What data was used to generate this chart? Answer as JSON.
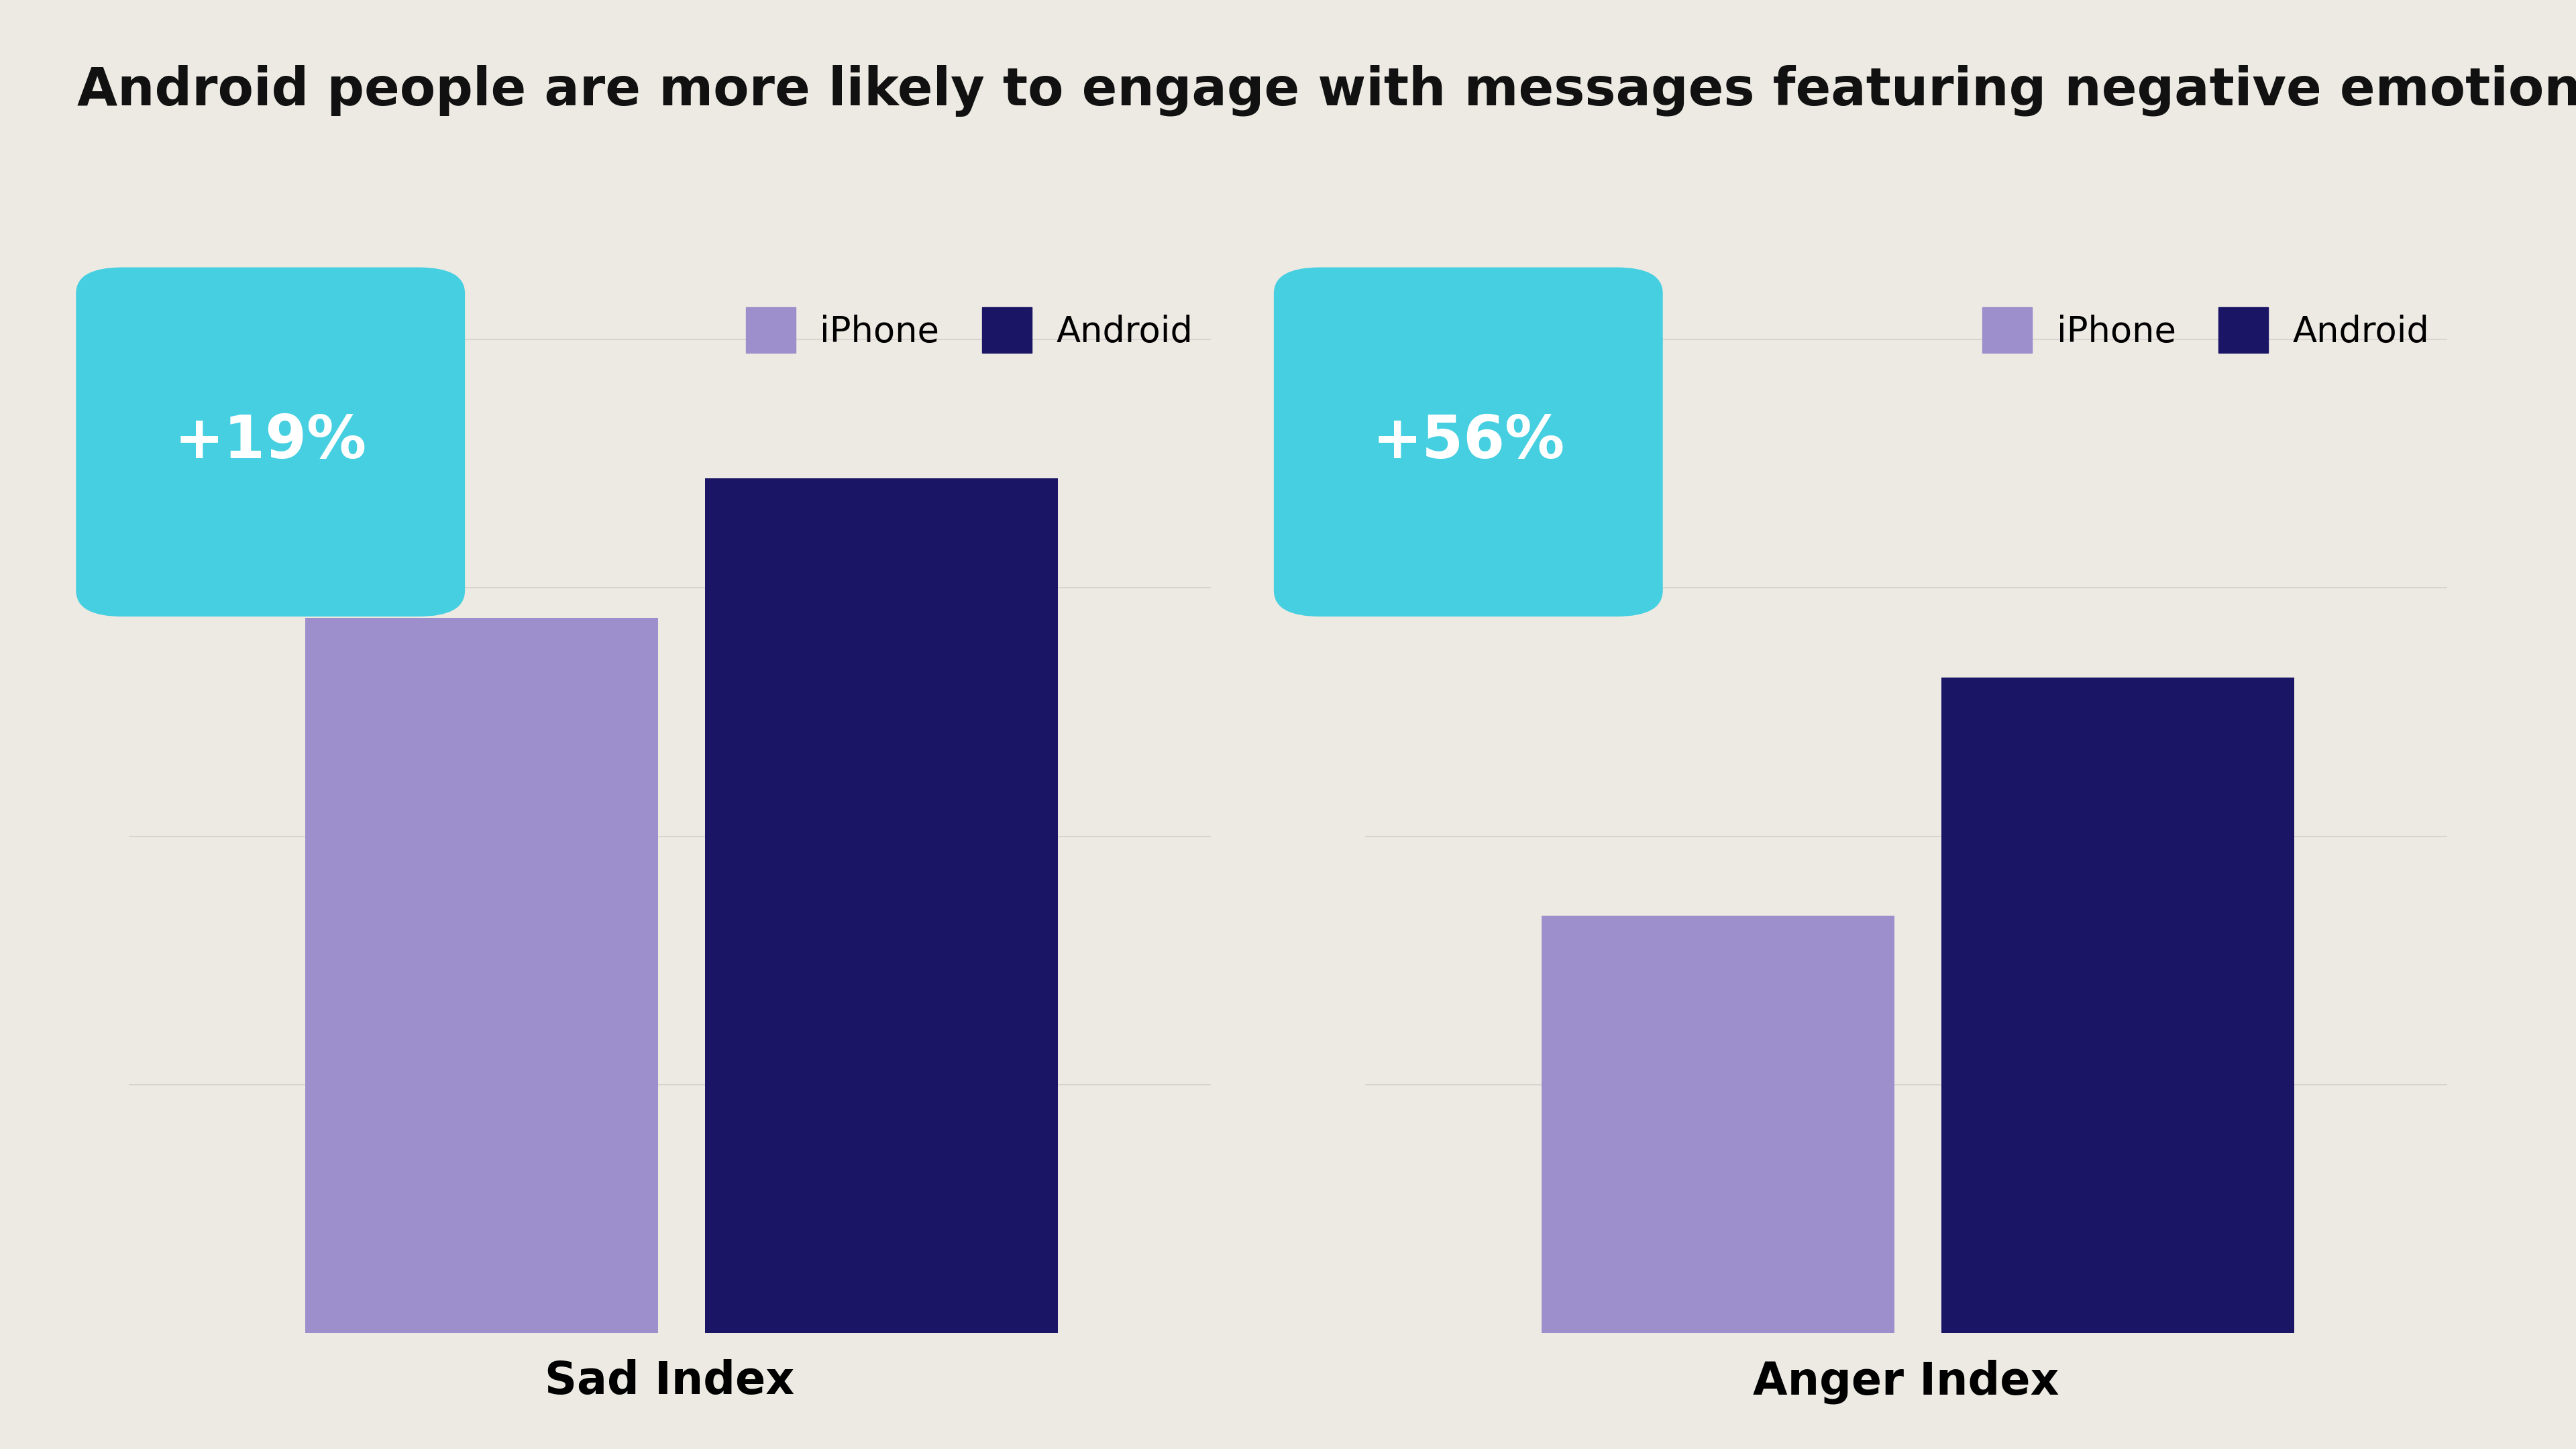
{
  "title": "Android people are more likely to engage with messages featuring negative emotions.",
  "background_color": "#edeae3",
  "chart1": {
    "label": "Sad Index",
    "iphone_value": 0.72,
    "android_value": 0.86,
    "badge_text": "+19%",
    "badge_color": "#45cfe0"
  },
  "chart2": {
    "label": "Anger Index",
    "iphone_value": 0.42,
    "android_value": 0.66,
    "badge_text": "+56%",
    "badge_color": "#45cfe0"
  },
  "iphone_color": "#9d8fcc",
  "android_color": "#1b1566",
  "legend_iphone": "iPhone",
  "legend_android": "Android",
  "title_fontsize": 56,
  "label_fontsize": 48,
  "legend_fontsize": 38,
  "badge_fontsize": 64,
  "ylim_max": 1.05
}
